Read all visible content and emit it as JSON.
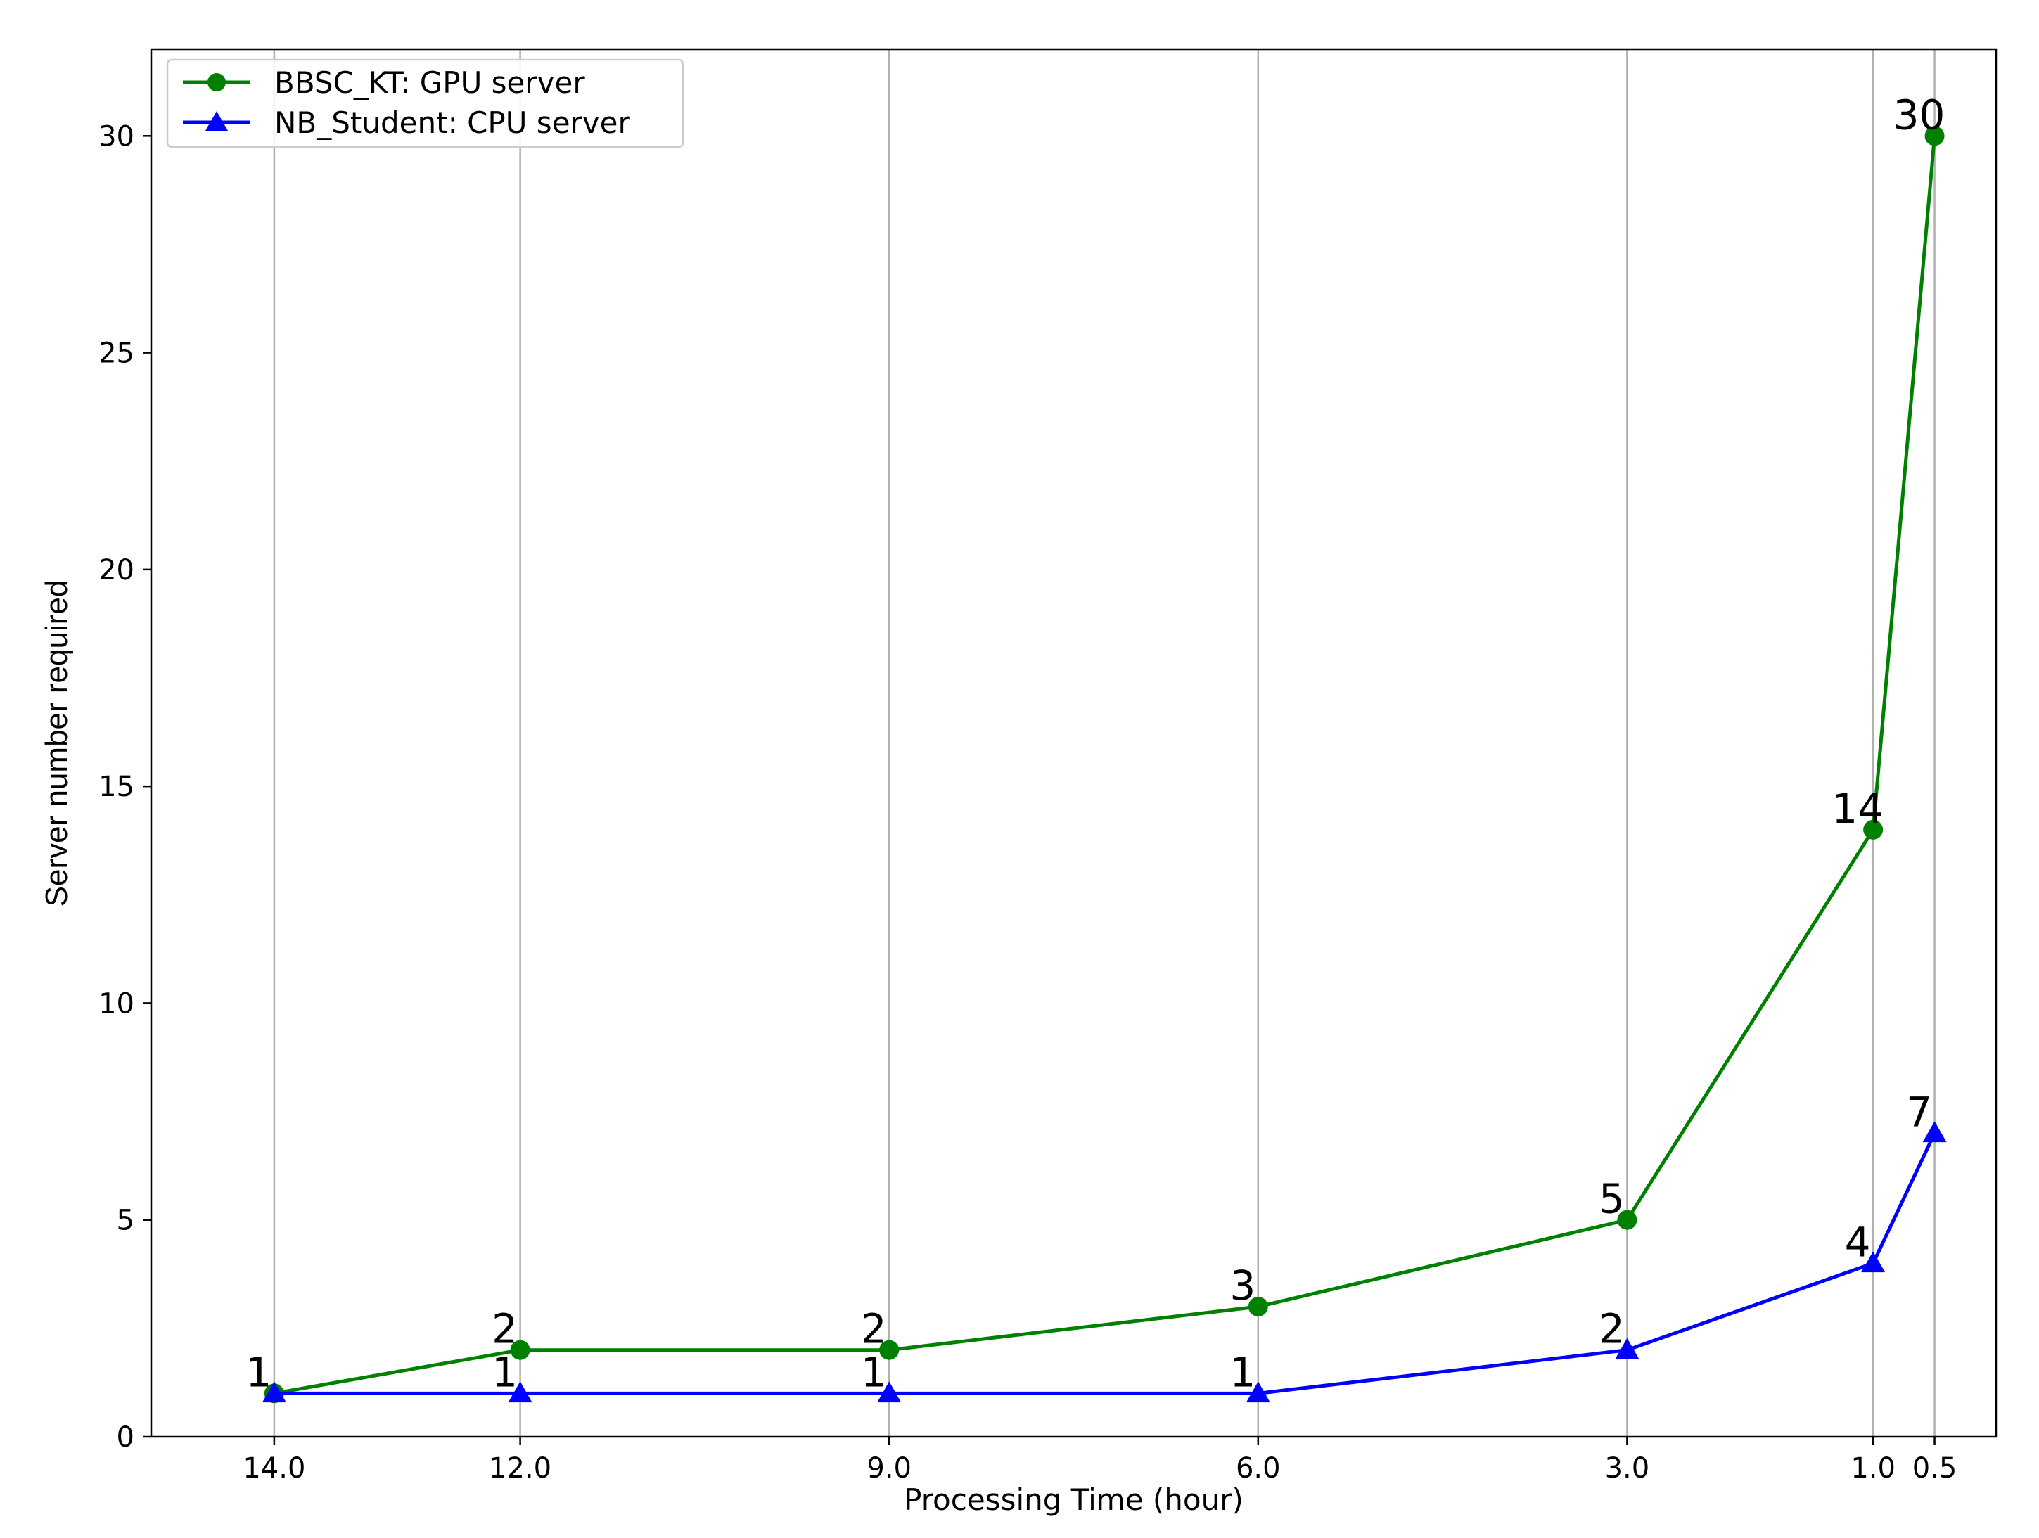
{
  "chart_data": {
    "type": "line",
    "xlabel": "Processing Time (hour)",
    "ylabel": "Server number required",
    "x": [
      14.0,
      12.0,
      9.0,
      6.0,
      3.0,
      1.0,
      0.5
    ],
    "x_tick_labels": [
      "14.0",
      "12.0",
      "9.0",
      "6.0",
      "3.0",
      "1.0",
      "0.5"
    ],
    "x_reversed": true,
    "xlim": [
      15.0,
      -0.0
    ],
    "ylim": [
      0,
      32
    ],
    "y_ticks": [
      0,
      5,
      10,
      15,
      20,
      25,
      30
    ],
    "grid": "vertical lines at x ticks",
    "legend_position": "upper-left",
    "series": [
      {
        "name": "BBSC_KT: GPU server",
        "color": "#008000",
        "marker": "circle",
        "values": [
          1,
          2,
          2,
          3,
          5,
          14,
          30
        ]
      },
      {
        "name": "NB_Student: CPU server",
        "color": "#0000ff",
        "marker": "triangle-up",
        "values": [
          1,
          1,
          1,
          1,
          2,
          4,
          7
        ]
      }
    ]
  }
}
